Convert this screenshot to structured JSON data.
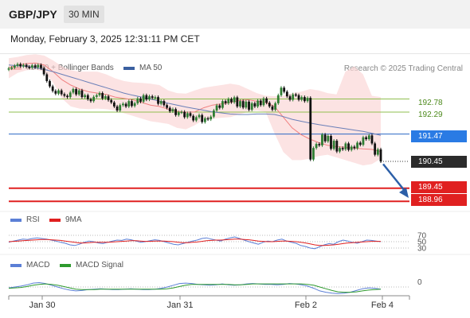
{
  "header": {
    "pair": "GBP/JPY",
    "timeframe": "30 MIN"
  },
  "datetime": "Monday, February 3, 2025 12:31:11 PM CET",
  "legend": {
    "price": [
      {
        "label": "MA 20 + Bollinger Bands",
        "color": "#f08080"
      },
      {
        "label": "MA 50",
        "color": "#3a5fa0"
      }
    ],
    "rsi": [
      {
        "label": "RSI",
        "color": "#5b7fd6"
      },
      {
        "label": "9MA",
        "color": "#e02020"
      }
    ],
    "macd": [
      {
        "label": "MACD",
        "color": "#5b7fd6"
      },
      {
        "label": "MACD Signal",
        "color": "#2e9a2e"
      }
    ]
  },
  "research": "Research © 2025 Trading Central",
  "chart_data": [
    {
      "type": "candlestick",
      "title": "GBP/JPY 30 MIN",
      "x_ticks": [
        "Jan 30",
        "Jan 31",
        "Feb 2",
        "Feb 4"
      ],
      "ylim": [
        188.7,
        194.1
      ],
      "close": [
        193.92,
        193.95,
        194.02,
        194.08,
        194.0,
        194.05,
        193.98,
        193.95,
        194.03,
        193.96,
        194.05,
        193.93,
        193.7,
        193.45,
        193.25,
        193.08,
        192.98,
        193.1,
        192.96,
        192.9,
        192.85,
        193.02,
        193.15,
        192.95,
        193.1,
        192.85,
        192.92,
        192.77,
        192.7,
        192.86,
        192.92,
        193.0,
        192.8,
        192.88,
        192.74,
        192.65,
        192.5,
        192.35,
        192.55,
        192.6,
        192.5,
        192.7,
        192.52,
        192.62,
        192.8,
        192.68,
        192.92,
        192.76,
        192.88,
        192.82,
        192.85,
        192.6,
        192.7,
        192.55,
        192.45,
        192.32,
        192.4,
        192.18,
        192.28,
        192.3,
        192.1,
        192.25,
        192.15,
        191.98,
        192.1,
        192.18,
        191.92,
        192.06,
        192.02,
        192.12,
        192.35,
        192.54,
        192.45,
        192.7,
        192.62,
        192.78,
        192.66,
        192.84,
        192.5,
        192.7,
        192.46,
        192.68,
        192.38,
        192.62,
        192.5,
        192.72,
        192.55,
        192.8,
        192.64,
        192.5,
        192.38,
        192.62,
        192.92,
        193.2,
        193.05,
        192.88,
        192.75,
        192.95,
        192.92,
        192.75,
        192.85,
        192.7,
        192.82,
        190.52,
        190.95,
        191.1,
        191.05,
        191.45,
        191.2,
        191.4,
        190.92,
        191.22,
        190.82,
        190.95,
        190.9,
        191.12,
        190.88,
        191.0,
        190.94,
        191.15,
        191.07,
        191.35,
        191.28,
        191.42,
        191.12,
        190.7,
        190.9,
        190.45
      ],
      "bollinger_upper": [
        194.3,
        194.35,
        194.42,
        194.45,
        194.4,
        194.22,
        194.0,
        193.85,
        193.8,
        193.8,
        193.8,
        193.7,
        193.55,
        193.45,
        193.4,
        193.38,
        193.35,
        193.3,
        193.1,
        193.0,
        192.98,
        193.1,
        193.2,
        193.25,
        193.3,
        193.35,
        193.3,
        193.15,
        193.0,
        192.9,
        192.88,
        192.9,
        193.0,
        193.05,
        193.15,
        193.1,
        193.0,
        192.95,
        193.8,
        194.0,
        193.7,
        192.9,
        192.85
      ],
      "bollinger_lower": [
        193.55,
        193.75,
        193.85,
        193.88,
        193.8,
        193.4,
        192.8,
        192.5,
        192.42,
        192.4,
        192.42,
        192.4,
        192.35,
        192.25,
        192.15,
        192.05,
        191.95,
        191.9,
        191.85,
        191.7,
        191.65,
        191.8,
        192.0,
        192.05,
        192.08,
        192.1,
        192.2,
        192.3,
        192.35,
        192.3,
        191.5,
        190.8,
        190.5,
        190.5,
        190.55,
        190.65,
        190.7,
        190.6,
        190.5,
        190.4,
        190.3,
        190.35,
        190.55
      ],
      "ma20": [
        193.95,
        194.05,
        194.1,
        194.12,
        194.05,
        193.8,
        193.5,
        193.3,
        193.15,
        193.05,
        193.0,
        192.95,
        192.85,
        192.8,
        192.75,
        192.65,
        192.55,
        192.5,
        192.4,
        192.32,
        192.28,
        192.3,
        192.45,
        192.55,
        192.6,
        192.65,
        192.72,
        192.75,
        192.7,
        192.65,
        192.5,
        192.1,
        191.7,
        191.45,
        191.28,
        191.15,
        191.05,
        191.0,
        190.98,
        190.95,
        190.92,
        190.9,
        190.8
      ],
      "ma50": [
        194.05,
        194.02,
        194.0,
        193.95,
        193.88,
        193.8,
        193.7,
        193.6,
        193.5,
        193.4,
        193.3,
        193.2,
        193.1,
        193.0,
        192.92,
        192.85,
        192.78,
        192.7,
        192.62,
        192.55,
        192.48,
        192.42,
        192.36,
        192.3,
        192.26,
        192.22,
        192.2,
        192.2,
        192.22,
        192.22,
        192.2,
        192.12,
        192.02,
        191.95,
        191.88,
        191.82,
        191.77,
        191.72,
        191.67,
        191.62,
        191.57,
        191.5,
        191.42
      ],
      "levels": [
        {
          "label": "192.78",
          "value": 192.78,
          "color": "#8fbf4f",
          "text_color": "#4e8a1d"
        },
        {
          "label": "192.29",
          "value": 192.29,
          "color": "#8fbf4f",
          "text_color": "#4e8a1d"
        },
        {
          "label": "191.47",
          "value": 191.47,
          "color": "#2a66c4",
          "fill": "#2a7be4"
        },
        {
          "label": "190.45",
          "value": 190.45,
          "color": "#333333",
          "fill": "#2b2b2b"
        },
        {
          "label": "189.45",
          "value": 189.45,
          "color": "#e02020",
          "fill": "#e02020"
        },
        {
          "label": "188.96",
          "value": 188.96,
          "color": "#e02020",
          "fill": "#e02020"
        }
      ]
    },
    {
      "type": "line",
      "title": "RSI",
      "y_ticks": [
        "70",
        "50",
        "30"
      ],
      "ylim": [
        0,
        100
      ],
      "series": [
        {
          "name": "RSI",
          "values": [
            48,
            52,
            55,
            58,
            57,
            60,
            62,
            60,
            58,
            55,
            52,
            48,
            45,
            40,
            38,
            42,
            48,
            52,
            50,
            46,
            44,
            48,
            52,
            55,
            54,
            58,
            56,
            52,
            48,
            50,
            53,
            56,
            54,
            50,
            46,
            42,
            40,
            44,
            48,
            52,
            55,
            60,
            62,
            58,
            55,
            52,
            58,
            62,
            65,
            60,
            55,
            50,
            46,
            42,
            48,
            52,
            50,
            55,
            58,
            52,
            48,
            45,
            38,
            35,
            30,
            28,
            34,
            40,
            44,
            42,
            50,
            55,
            52,
            48,
            45,
            50,
            55,
            54,
            52,
            50
          ]
        },
        {
          "name": "9MA",
          "values": [
            50,
            51,
            52,
            53,
            54,
            55,
            56,
            57,
            57,
            56,
            55,
            54,
            52,
            50,
            48,
            46,
            46,
            47,
            48,
            48,
            48,
            48,
            49,
            50,
            51,
            52,
            53,
            53,
            52,
            51,
            51,
            52,
            52,
            52,
            51,
            50,
            48,
            47,
            47,
            48,
            49,
            51,
            53,
            54,
            55,
            55,
            56,
            57,
            58,
            58,
            57,
            56,
            54,
            52,
            51,
            50,
            50,
            51,
            52,
            52,
            51,
            50,
            48,
            46,
            43,
            40,
            38,
            38,
            39,
            40,
            42,
            44,
            46,
            47,
            48,
            49,
            50,
            51,
            51,
            51
          ]
        }
      ]
    },
    {
      "type": "line",
      "title": "MACD",
      "y_ticks": [
        "0"
      ],
      "series": [
        {
          "name": "MACD",
          "values": [
            -0.02,
            0.0,
            0.02,
            0.05,
            0.09,
            0.1,
            0.08,
            0.04,
            0.0,
            -0.04,
            -0.07,
            -0.09,
            -0.08,
            -0.06,
            -0.05,
            -0.04,
            -0.05,
            -0.06,
            -0.06,
            -0.05,
            -0.04,
            -0.05,
            -0.06,
            -0.06,
            -0.05,
            -0.03,
            0.0,
            0.04,
            0.08,
            0.09,
            0.08,
            0.06,
            0.05,
            0.04,
            0.05,
            0.07,
            0.05,
            0.04,
            0.05,
            0.07,
            0.08,
            0.07,
            0.06,
            0.06,
            0.05,
            0.06,
            0.08,
            0.07,
            0.05,
            0.02,
            -0.03,
            -0.09,
            -0.12,
            -0.14,
            -0.15,
            -0.14,
            -0.12,
            -0.08,
            -0.04,
            -0.02,
            -0.03,
            -0.05
          ]
        },
        {
          "name": "MACD Signal",
          "values": [
            -0.03,
            -0.02,
            -0.01,
            0.01,
            0.04,
            0.06,
            0.07,
            0.06,
            0.04,
            0.01,
            -0.02,
            -0.05,
            -0.06,
            -0.06,
            -0.06,
            -0.05,
            -0.05,
            -0.05,
            -0.05,
            -0.05,
            -0.05,
            -0.05,
            -0.05,
            -0.05,
            -0.05,
            -0.05,
            -0.04,
            -0.02,
            0.01,
            0.04,
            0.06,
            0.06,
            0.06,
            0.06,
            0.06,
            0.06,
            0.06,
            0.05,
            0.05,
            0.06,
            0.07,
            0.07,
            0.07,
            0.07,
            0.07,
            0.07,
            0.07,
            0.07,
            0.07,
            0.06,
            0.04,
            0.0,
            -0.04,
            -0.08,
            -0.11,
            -0.12,
            -0.12,
            -0.11,
            -0.09,
            -0.07,
            -0.06,
            -0.05
          ]
        }
      ]
    }
  ]
}
